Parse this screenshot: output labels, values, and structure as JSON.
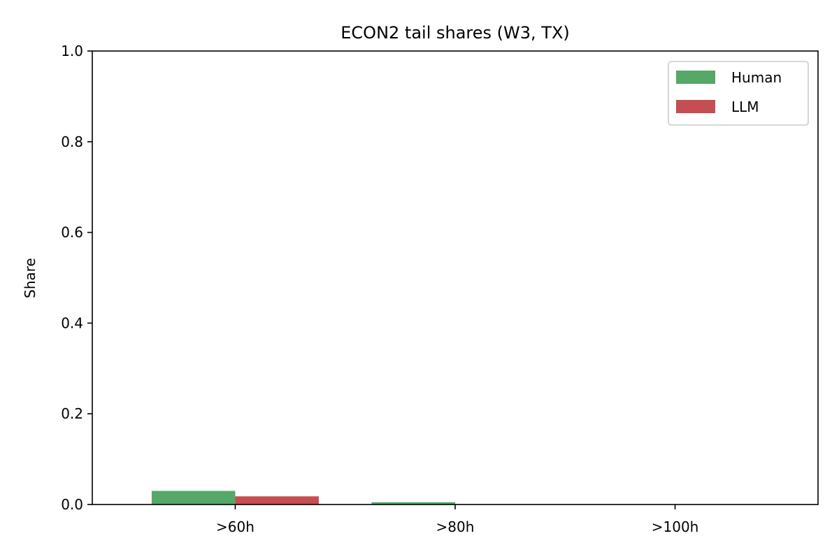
{
  "chart_data": {
    "type": "bar",
    "title": "ECON2 tail shares (W3, TX)",
    "xlabel": "",
    "ylabel": "Share",
    "categories": [
      ">60h",
      ">80h",
      ">100h"
    ],
    "series": [
      {
        "name": "Human",
        "color": "#55a868",
        "values": [
          0.03,
          0.005,
          0.0
        ]
      },
      {
        "name": "LLM",
        "color": "#c44e52",
        "values": [
          0.018,
          0.0,
          0.0
        ]
      }
    ],
    "ylim": [
      0,
      1.0
    ],
    "yticks": [
      "0.0",
      "0.2",
      "0.4",
      "0.6",
      "0.8",
      "1.0"
    ],
    "yticks_values": [
      0,
      0.2,
      0.4,
      0.6,
      0.8,
      1.0
    ],
    "grid": false,
    "legend_position": "top-right"
  }
}
